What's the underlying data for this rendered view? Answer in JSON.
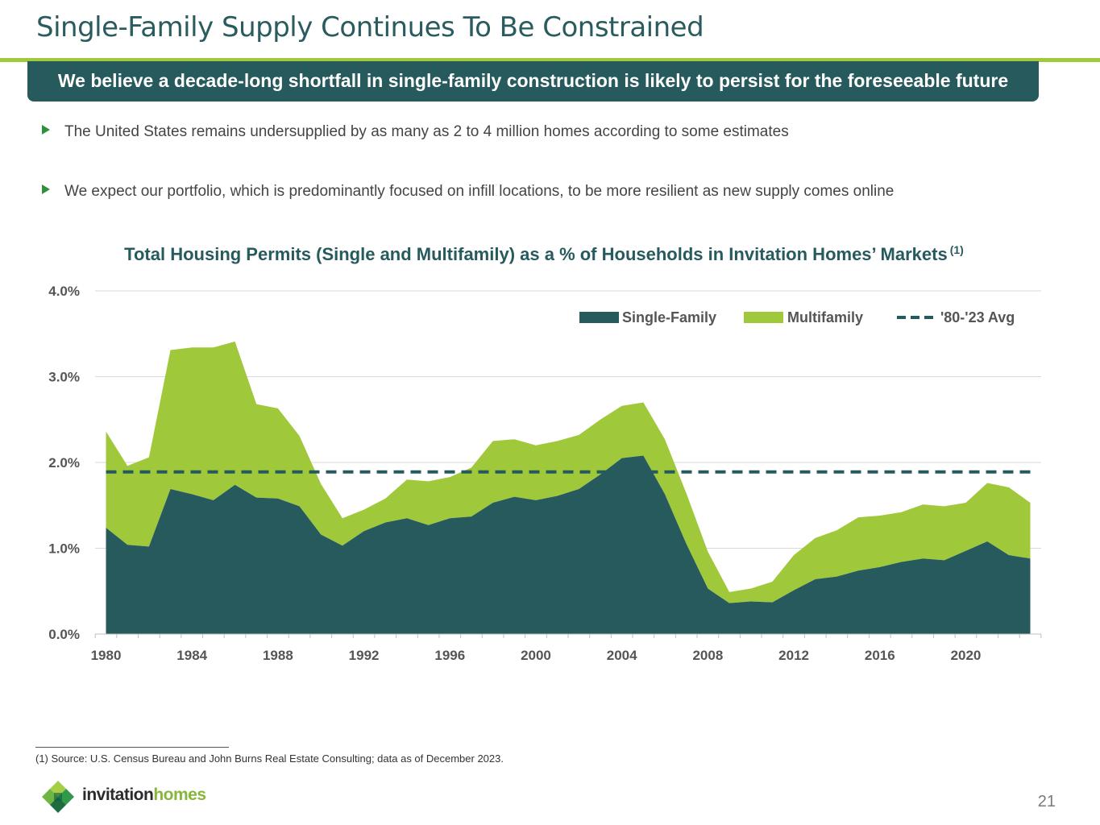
{
  "slide": {
    "title": "Single-Family Supply Continues To Be Constrained",
    "banner": "We believe a decade-long shortfall in single-family construction is likely to persist for the foreseeable future",
    "bullets": [
      "The United States remains undersupplied by as many as 2 to 4 million homes according to some estimates",
      "We expect our portfolio, which is predominantly focused on infill locations, to be more resilient as new supply comes online"
    ],
    "chart_title": "Total Housing Permits (Single and Multifamily) as a % of Households in Invitation Homes’ Markets",
    "chart_title_note": "(1)",
    "footnote": "(1) Source: U.S. Census Bureau and John Burns Real Estate Consulting; data as of December 2023.",
    "logo_word1": "invitation",
    "logo_word2": "homes",
    "page_number": "21"
  },
  "colors": {
    "single_family": "#275a5d",
    "multifamily": "#9fc93b",
    "average": "#275a5d",
    "grid": "#d9d9d9"
  },
  "chart_data": {
    "type": "area",
    "stacked": true,
    "title": "Total Housing Permits (Single and Multifamily) as a % of Households in Invitation Homes’ Markets",
    "x": [
      1980,
      1981,
      1982,
      1983,
      1984,
      1985,
      1986,
      1987,
      1988,
      1989,
      1990,
      1991,
      1992,
      1993,
      1994,
      1995,
      1996,
      1997,
      1998,
      1999,
      2000,
      2001,
      2002,
      2003,
      2004,
      2005,
      2006,
      2007,
      2008,
      2009,
      2010,
      2011,
      2012,
      2013,
      2014,
      2015,
      2016,
      2017,
      2018,
      2019,
      2020,
      2021,
      2022,
      2023
    ],
    "series": [
      {
        "name": "Single-Family",
        "values": [
          1.24,
          1.04,
          1.02,
          1.69,
          1.63,
          1.56,
          1.74,
          1.59,
          1.58,
          1.49,
          1.16,
          1.03,
          1.2,
          1.3,
          1.35,
          1.27,
          1.35,
          1.37,
          1.53,
          1.6,
          1.56,
          1.61,
          1.69,
          1.86,
          2.05,
          2.08,
          1.63,
          1.05,
          0.53,
          0.36,
          0.38,
          0.37,
          0.51,
          0.64,
          0.67,
          0.74,
          0.78,
          0.84,
          0.88,
          0.86,
          0.97,
          1.08,
          0.92,
          0.88
        ]
      },
      {
        "name": "Multifamily",
        "values": [
          1.12,
          0.92,
          1.04,
          1.62,
          1.71,
          1.78,
          1.67,
          1.09,
          1.05,
          0.82,
          0.59,
          0.32,
          0.25,
          0.28,
          0.45,
          0.51,
          0.48,
          0.57,
          0.72,
          0.67,
          0.64,
          0.64,
          0.63,
          0.64,
          0.61,
          0.62,
          0.64,
          0.59,
          0.43,
          0.13,
          0.15,
          0.24,
          0.41,
          0.48,
          0.54,
          0.62,
          0.6,
          0.58,
          0.63,
          0.63,
          0.56,
          0.68,
          0.79,
          0.65
        ]
      }
    ],
    "reference_lines": [
      {
        "name": "'80-'23 Avg",
        "value": 1.89,
        "style": "dashed"
      }
    ],
    "xticks": [
      1980,
      1984,
      1988,
      1992,
      1996,
      2000,
      2004,
      2008,
      2012,
      2016,
      2020
    ],
    "yticks": [
      0,
      1,
      2,
      3,
      4
    ],
    "ytick_labels": [
      "0.0%",
      "1.0%",
      "2.0%",
      "3.0%",
      "4.0%"
    ],
    "ylim": [
      0,
      4
    ],
    "xlabel": "",
    "ylabel": "",
    "legend": [
      "Single-Family",
      "Multifamily",
      "'80-'23 Avg"
    ],
    "legend_position": "top-right",
    "grid": true
  }
}
